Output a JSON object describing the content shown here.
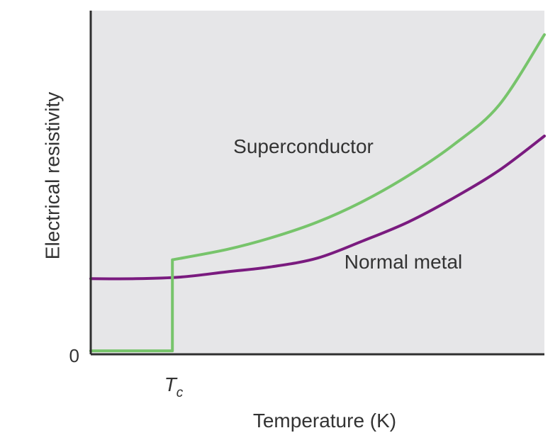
{
  "colors": {
    "plot_background": "#e6e6e8",
    "axis": "#2f2f2f",
    "superconductor": "#77c46b",
    "normal_metal": "#7a1b7f",
    "text": "#333333"
  },
  "chart_data": {
    "type": "line",
    "title": "",
    "xlabel": "Temperature (K)",
    "ylabel": "Electrical resistivity",
    "xlim": [
      0,
      100
    ],
    "ylim": [
      0,
      100
    ],
    "x_ticks": [
      {
        "label": "T",
        "subscript": "c",
        "value": 18
      }
    ],
    "y_ticks": [
      {
        "label": "0",
        "value": 0
      }
    ],
    "grid": false,
    "series": [
      {
        "name": "Superconductor",
        "label_position": "above",
        "points": [
          [
            0,
            1
          ],
          [
            18,
            1
          ],
          [
            18,
            27.5
          ],
          [
            30,
            30.5
          ],
          [
            40,
            34
          ],
          [
            50,
            38.5
          ],
          [
            60,
            44.5
          ],
          [
            70,
            52
          ],
          [
            80,
            61
          ],
          [
            90,
            72.5
          ],
          [
            100,
            93
          ]
        ]
      },
      {
        "name": "Normal metal",
        "label_position": "below",
        "points": [
          [
            0,
            22
          ],
          [
            10,
            22
          ],
          [
            20,
            22.5
          ],
          [
            30,
            24
          ],
          [
            40,
            25.5
          ],
          [
            50,
            28
          ],
          [
            60,
            33
          ],
          [
            70,
            38.5
          ],
          [
            80,
            45.5
          ],
          [
            90,
            53.5
          ],
          [
            100,
            63.5
          ]
        ]
      }
    ]
  }
}
